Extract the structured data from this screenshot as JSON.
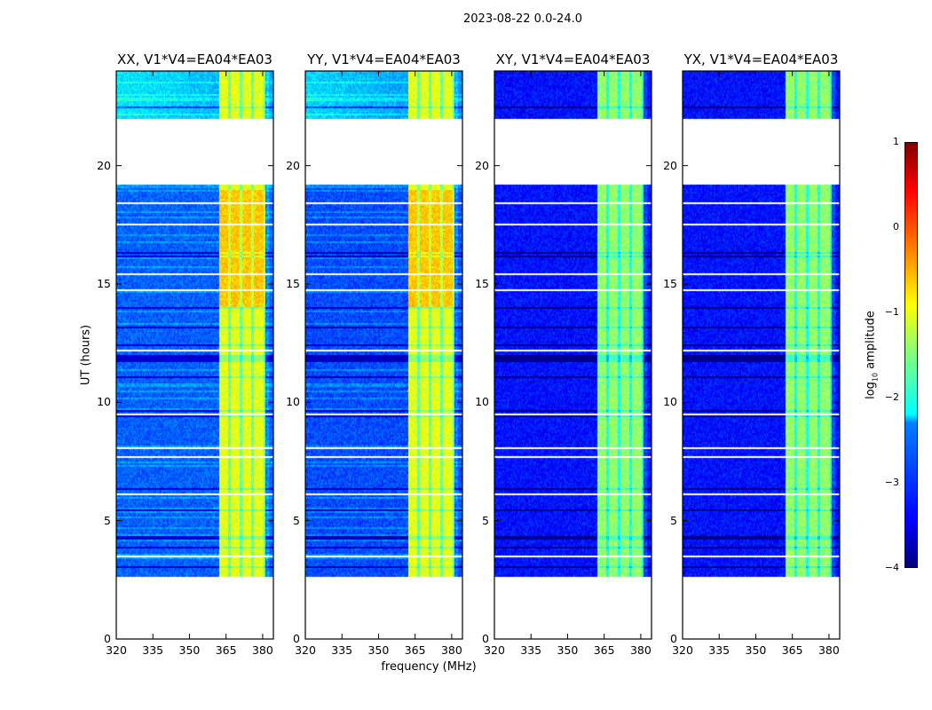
{
  "suptitle": "2023-08-22 0.0-24.0",
  "colormap": "jet",
  "chart_data": {
    "type": "heatmap",
    "xlabel": "frequency (MHz)",
    "ylabel": "UT (hours)",
    "xlim": [
      320,
      384.4
    ],
    "ylim": [
      0,
      24
    ],
    "xticks": [
      "320",
      "335",
      "350",
      "365",
      "380"
    ],
    "xtick_values": [
      320,
      335,
      350,
      365,
      380
    ],
    "yticks": [
      "0",
      "5",
      "10",
      "15",
      "20"
    ],
    "ytick_values": [
      0,
      5,
      10,
      15,
      20
    ],
    "data_time_ranges": [
      [
        2.6,
        19.2
      ],
      [
        22.0,
        24.0
      ]
    ],
    "bright_band_mhz": [
      362,
      381
    ],
    "panels": [
      {
        "title": "XX, V1*V4=EA04*EA03",
        "pol": "XX",
        "background_log_amp": -2.9,
        "band_log_amp": -1.0
      },
      {
        "title": "YY, V1*V4=EA04*EA03",
        "pol": "YY",
        "background_log_amp": -3.0,
        "band_log_amp": -1.0
      },
      {
        "title": "XY, V1*V4=EA04*EA03",
        "pol": "XY",
        "background_log_amp": -3.3,
        "band_log_amp": -1.4
      },
      {
        "title": "YX, V1*V4=EA04*EA03",
        "pol": "YX",
        "background_log_amp": -3.3,
        "band_log_amp": -1.4
      }
    ],
    "colorbar": {
      "label_main": "log",
      "label_sub": "10",
      "label_rest": " amplitude",
      "range": [
        -4,
        1
      ],
      "ticks": [
        "1",
        "0",
        "−1",
        "−2",
        "−3",
        "−4"
      ],
      "tick_values": [
        1,
        0,
        -1,
        -2,
        -3,
        -4
      ]
    }
  }
}
